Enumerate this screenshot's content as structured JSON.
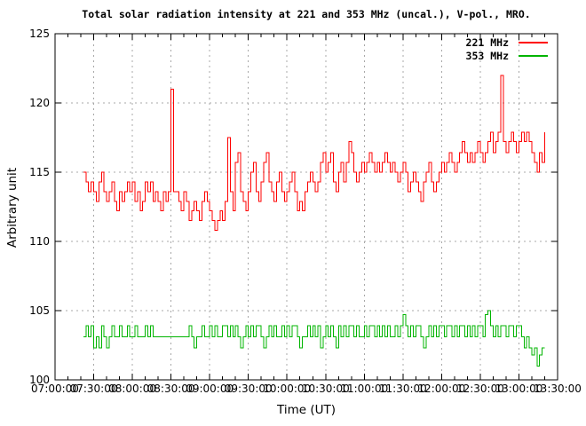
{
  "title": "Total solar radiation intensity at 221 and 353 MHz (uncal.), V-pol., MRO.",
  "chart_data": {
    "type": "line",
    "title": "Total solar radiation intensity at 221 and 353 MHz (uncal.), V-pol., MRO.",
    "xlabel": "Time (UT)",
    "ylabel": "Arbitrary unit",
    "grid": true,
    "legend_position": "top-right-inside",
    "colors": {
      "grid": "#a8a8a8",
      "border": "#000000",
      "background": "#ffffff"
    },
    "x_axis": {
      "start_label": "07:00:00",
      "end_label": "13:30:00",
      "major_tick_minutes": 30,
      "minor_tick_minutes": 10,
      "tick_labels": [
        "07:00:00",
        "07:30:00",
        "08:00:00",
        "08:30:00",
        "09:00:00",
        "09:30:00",
        "10:00:00",
        "10:30:00",
        "11:00:00",
        "11:30:00",
        "12:00:00",
        "12:30:00",
        "13:00:00",
        "13:30:00"
      ],
      "tick_minutes": [
        420,
        450,
        480,
        510,
        540,
        570,
        600,
        630,
        660,
        690,
        720,
        750,
        780,
        810
      ]
    },
    "y_axis": {
      "min": 100,
      "max": 125,
      "tick_step": 5,
      "tick_labels": [
        "100",
        "105",
        "110",
        "115",
        "120",
        "125"
      ],
      "tick_values": [
        100,
        105,
        110,
        115,
        120,
        125
      ]
    },
    "samples": {
      "first_sample_time": "07:22",
      "first_sample_minutes": 442,
      "step_minutes": 2,
      "last_sample_time": "13:20"
    },
    "series": [
      {
        "name": "221 MHz",
        "color": "#ff0000",
        "values": [
          115.0,
          114.3,
          113.6,
          114.3,
          113.6,
          112.9,
          114.3,
          115.0,
          113.6,
          112.9,
          113.6,
          114.3,
          112.9,
          112.2,
          113.6,
          112.9,
          113.6,
          114.3,
          113.6,
          114.3,
          112.9,
          113.6,
          112.2,
          112.9,
          114.3,
          113.6,
          114.3,
          112.9,
          113.6,
          112.9,
          112.2,
          113.6,
          112.9,
          113.6,
          121.0,
          113.6,
          113.6,
          112.9,
          112.2,
          113.6,
          112.9,
          111.5,
          112.2,
          112.9,
          112.2,
          111.5,
          112.9,
          113.6,
          112.9,
          112.2,
          111.5,
          110.8,
          111.5,
          112.2,
          111.5,
          112.9,
          117.5,
          113.6,
          112.2,
          115.7,
          116.4,
          113.6,
          112.9,
          112.2,
          113.6,
          115.0,
          115.7,
          113.6,
          112.9,
          114.3,
          115.7,
          116.4,
          114.3,
          113.6,
          112.9,
          114.3,
          115.0,
          113.6,
          112.9,
          113.6,
          114.3,
          115.0,
          113.6,
          112.2,
          112.9,
          112.2,
          113.6,
          114.3,
          115.0,
          114.3,
          113.6,
          114.3,
          115.7,
          116.4,
          115.0,
          115.7,
          116.4,
          114.3,
          113.6,
          115.0,
          115.7,
          114.3,
          115.7,
          117.2,
          116.4,
          115.0,
          114.3,
          115.0,
          115.7,
          115.0,
          115.7,
          116.4,
          115.7,
          115.0,
          115.7,
          115.0,
          115.7,
          116.4,
          115.7,
          115.0,
          115.7,
          115.0,
          114.3,
          115.0,
          115.7,
          115.0,
          113.6,
          114.3,
          115.0,
          114.3,
          113.6,
          112.9,
          114.3,
          115.0,
          115.7,
          114.3,
          113.6,
          114.3,
          115.0,
          115.7,
          115.0,
          115.7,
          116.4,
          115.7,
          115.0,
          115.7,
          116.4,
          117.2,
          116.4,
          115.7,
          116.4,
          115.7,
          116.4,
          117.2,
          116.4,
          115.7,
          116.4,
          117.2,
          117.9,
          116.4,
          117.2,
          117.9,
          122.0,
          117.2,
          116.4,
          117.2,
          117.9,
          117.2,
          116.4,
          117.2,
          117.9,
          117.2,
          117.9,
          117.2,
          116.4,
          115.7,
          115.0,
          116.4,
          115.7,
          117.9
        ]
      },
      {
        "name": "353 MHz",
        "color": "#00b400",
        "values": [
          103.1,
          103.9,
          103.1,
          103.9,
          102.3,
          103.1,
          102.3,
          103.9,
          103.1,
          102.3,
          103.1,
          103.9,
          103.1,
          103.1,
          103.9,
          103.1,
          103.1,
          103.9,
          103.1,
          103.1,
          103.9,
          103.1,
          103.1,
          103.1,
          103.9,
          103.1,
          103.9,
          103.1,
          103.1,
          103.1,
          103.1,
          103.1,
          103.1,
          103.1,
          103.1,
          103.1,
          103.1,
          103.1,
          103.1,
          103.1,
          103.1,
          103.9,
          103.1,
          102.3,
          103.1,
          103.1,
          103.9,
          103.1,
          103.1,
          103.9,
          103.1,
          103.9,
          103.1,
          103.1,
          103.9,
          103.9,
          103.1,
          103.9,
          103.1,
          103.9,
          103.1,
          102.3,
          103.1,
          103.9,
          103.1,
          103.9,
          103.1,
          103.9,
          103.9,
          103.1,
          102.3,
          103.1,
          103.9,
          103.1,
          103.9,
          103.1,
          103.1,
          103.9,
          103.1,
          103.9,
          103.1,
          103.9,
          103.9,
          103.1,
          102.3,
          103.1,
          103.1,
          103.9,
          103.1,
          103.9,
          103.1,
          103.9,
          102.3,
          103.1,
          103.9,
          103.1,
          103.9,
          103.1,
          102.3,
          103.9,
          103.1,
          103.9,
          103.1,
          103.9,
          103.9,
          103.1,
          103.9,
          103.1,
          103.1,
          103.9,
          103.1,
          103.9,
          103.9,
          103.1,
          103.9,
          103.1,
          103.9,
          103.1,
          103.9,
          103.1,
          103.1,
          103.9,
          103.1,
          103.9,
          104.7,
          103.9,
          103.1,
          103.9,
          103.1,
          103.9,
          103.9,
          103.1,
          102.3,
          103.1,
          103.9,
          103.1,
          103.9,
          103.1,
          103.9,
          103.9,
          103.1,
          103.9,
          103.9,
          103.1,
          103.9,
          103.1,
          103.9,
          103.9,
          103.1,
          103.9,
          103.1,
          103.9,
          103.1,
          103.9,
          103.9,
          103.1,
          104.7,
          105.0,
          103.9,
          103.1,
          103.9,
          103.1,
          103.9,
          103.9,
          103.1,
          103.9,
          103.9,
          103.1,
          103.9,
          103.9,
          103.1,
          102.3,
          103.1,
          102.3,
          101.8,
          102.3,
          101.0,
          101.8,
          102.3,
          102.3
        ]
      }
    ]
  }
}
